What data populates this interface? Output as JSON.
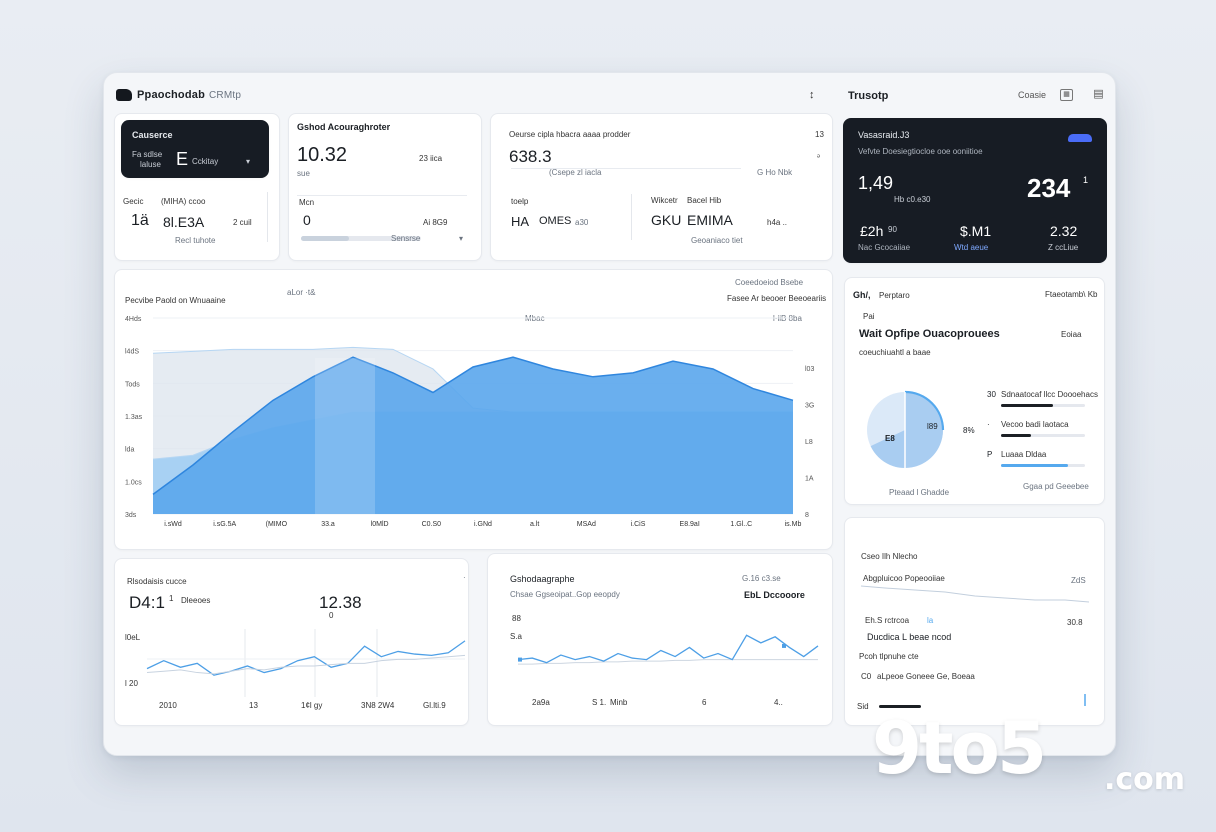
{
  "header": {
    "app_title": "Ppaochodab",
    "app_subtitle": "CRMtp",
    "mid_icon": "↕",
    "right_title": "Trusotp",
    "right_link": "Coasie"
  },
  "kpi1": {
    "title": "Causerce",
    "row_label_a": "Fa sdlse",
    "row_label_b": "laluse",
    "row_val": "E",
    "row_tag": "Cckitay",
    "sub_a": "Gecic",
    "sub_b": "(MIHA) ccoo",
    "big": "1ä",
    "mid": "8l.E3A",
    "small": "2 cuil",
    "foot": "Recl tuhote"
  },
  "kpi2": {
    "title": "Gshod Acouraghroter",
    "big": "10.32",
    "side": "23 iica",
    "label": "sue",
    "label2": "Mcn",
    "val": "0",
    "val2": "Ai 8G9",
    "progress_label": "Sensrse",
    "progress": 0.4
  },
  "kpi3": {
    "title": "Oeurse cipla hbacra aaaa prodder",
    "big": "638.3",
    "right_top": "13",
    "right_mid": "ₔ",
    "sub": "(Csepe zl iacla",
    "sub2": "G Ho Nbk",
    "a_label": "toelp",
    "a_val": "HA",
    "a_val2": "OMES",
    "a_val3": "a30",
    "b_label": "Wikcetr",
    "b_label2": "Bacel Hib",
    "b_val": "GKU",
    "b_val2": "EMIMA",
    "b_val3": "h4a ..",
    "b_foot": "Geoaniaco tiet"
  },
  "dark_card": {
    "title": "Vasasraid.J3",
    "subtitle": "Vefvte Doesiegtiocloe ooe ooniitioe",
    "big_left": "1,49",
    "big_left_sub": "Hb c0.e30",
    "big_right": "234",
    "big_right_suffix": "1",
    "f1_val": "£2h",
    "f1_sup": "90",
    "f1_label": "Nac Gcocaiiae",
    "f2_val": "$.M1",
    "f2_label": "Wtd aeue",
    "f3_val": "2.32",
    "f3_label": "Z ccLiue",
    "accent": "#4a6cf7"
  },
  "main_chart": {
    "title": "Pecvibe Paold on Wnuaaine",
    "sub_center": "aLor ·t&",
    "right_top": "Coeedoeiod Bsebe",
    "right_sub": "Fasee Ar beooer Beeoeariis",
    "top_mid": "Mbac",
    "top_right": "l·iiB  8ba",
    "colors": {
      "light": "#9dccf3",
      "mid": "#5aa6ec",
      "dark": "#2f86de"
    }
  },
  "chart_data": [
    {
      "type": "area",
      "title": "Pecvibe Paold on Wnuaaine",
      "yticks": [
        "4Hds",
        "l4dS",
        "Tods",
        "1.3as",
        "lda",
        "1.0cs",
        "3ds"
      ],
      "right_ticks": [
        "l03",
        "3G",
        "L8",
        "1A",
        "8"
      ],
      "xticks": [
        "i.sWd",
        "i.sG.5A",
        "(MIMO",
        "33.a",
        "l0MlD",
        "C0.S0",
        "i.GNd",
        "a.lt",
        "MSAd",
        "i.CiS",
        "E8.9aI",
        "1.Gl..C",
        "is.Mb"
      ],
      "x": [
        0,
        1,
        2,
        3,
        4,
        5,
        6,
        7,
        8,
        9,
        10,
        11,
        12,
        13,
        14,
        15,
        16
      ],
      "series": [
        {
          "values": [
            10,
            25,
            42,
            58,
            70,
            80,
            72,
            62,
            75,
            80,
            74,
            70,
            72,
            78,
            74,
            64,
            58
          ]
        },
        {
          "values": [
            28,
            30,
            38,
            44,
            48,
            52,
            52,
            52,
            52,
            52,
            52,
            52,
            52,
            52,
            52,
            52,
            52
          ]
        },
        {
          "values": [
            82,
            83,
            84,
            84,
            84,
            85,
            84,
            74,
            54,
            52,
            52,
            52,
            52,
            52,
            52,
            52,
            52
          ]
        }
      ]
    },
    {
      "type": "line",
      "title": "Rlsodaisis cucce",
      "x": [
        0,
        1,
        2,
        3,
        4,
        5,
        6,
        7,
        8,
        9,
        10,
        11,
        12,
        13,
        14,
        15,
        16,
        17,
        18,
        19
      ],
      "series": [
        {
          "values": [
            40,
            52,
            42,
            48,
            30,
            36,
            44,
            34,
            40,
            52,
            58,
            42,
            48,
            74,
            58,
            66,
            62,
            60,
            64,
            82
          ]
        },
        {
          "values": [
            34,
            36,
            38,
            34,
            32,
            36,
            40,
            38,
            42,
            44,
            44,
            46,
            48,
            48,
            52,
            54,
            54,
            56,
            58,
            60
          ]
        }
      ]
    },
    {
      "type": "line",
      "title": "Gshodaagraphe",
      "x": [
        0,
        1,
        2,
        3,
        4,
        5,
        6,
        7,
        8,
        9,
        10,
        11,
        12,
        13,
        14,
        15,
        16,
        17,
        18,
        19,
        20,
        21
      ],
      "series": [
        {
          "values": [
            40,
            42,
            36,
            46,
            40,
            44,
            38,
            48,
            42,
            40,
            52,
            44,
            56,
            42,
            48,
            40,
            72,
            62,
            70,
            56,
            44,
            58
          ]
        },
        {
          "values": [
            34,
            34,
            35,
            35,
            36,
            36,
            37,
            37,
            38,
            38,
            38,
            39,
            39,
            40,
            40,
            40,
            40,
            40,
            40,
            40,
            40,
            40
          ]
        }
      ]
    }
  ],
  "donut_card": {
    "title": "Gh/,",
    "title2": "Perptaro",
    "right": "Ftaeotamb\\ Kb",
    "label": "Pai",
    "heading": "Wait Opfipe Ouacoprouees",
    "heading_right": "Eoiaa",
    "legend_note": "coeuchiuahtl a baae",
    "donut_a": "l89",
    "donut_b": "8%",
    "donut_c": "E8",
    "foot": "Pteaad l Ghadde",
    "donut_fraction": 0.68,
    "legend": [
      {
        "num": "30",
        "label": "Sdnaatocaf llcc Doooehacs",
        "value": 0.62,
        "color": "#1b1f24"
      },
      {
        "num": "·",
        "label": "Vecoo badi laotaca",
        "value": 0.36,
        "color": "#1b1f24"
      },
      {
        "num": "P",
        "label": "Luaaa Dldaa",
        "value": 0.8,
        "color": "#55a9ee"
      }
    ],
    "legend_foot": "Ggaa pd Geeebee"
  },
  "bl_card": {
    "title": "Rlsodaisis cucce",
    "big": "D4:1",
    "big_sup": "1",
    "big_tag": "Dleeoes",
    "big2": "12.38",
    "big2_sup": "0",
    "ylabel_a": "l0eL",
    "ylabel_b": "l 20",
    "x_a": "2010",
    "x_b": "13",
    "x_c": "1¢l gy",
    "x_d": "3N8 2W4",
    "x_e": "Gl.lti.9"
  },
  "bm_card": {
    "title": "Gshodaagraphe",
    "title_right": "G.16 c3.se",
    "sub": "Chsae Ggseoipat..Gop eeopdy",
    "sub_right": "EbL Dccooore",
    "ylabel_a": "88",
    "ylabel_b": "S.a",
    "x_a": "2a9a",
    "x_b": "S 1.",
    "x_c": "Minb",
    "x_d": "6",
    "x_e": "4.."
  },
  "br_card": {
    "title": "Cseo Ilh Nlecho",
    "sub": "Abgpluicoo Popeooiiae",
    "sub_right": "ZdS",
    "row_label": "Eh.S rctrcoa",
    "row_tag": "la",
    "row_right": "30.8",
    "heading": "Ducdica L beae ncod",
    "note": "Pcoh tlpnuhe cte",
    "note2": "aLpeoe Goneee Ge, Boeaa",
    "note2_num": "C0",
    "foot_label": "Sid",
    "foot_progress": 0.35
  },
  "watermark": {
    "brand": "9to5",
    "suffix": ".com"
  }
}
